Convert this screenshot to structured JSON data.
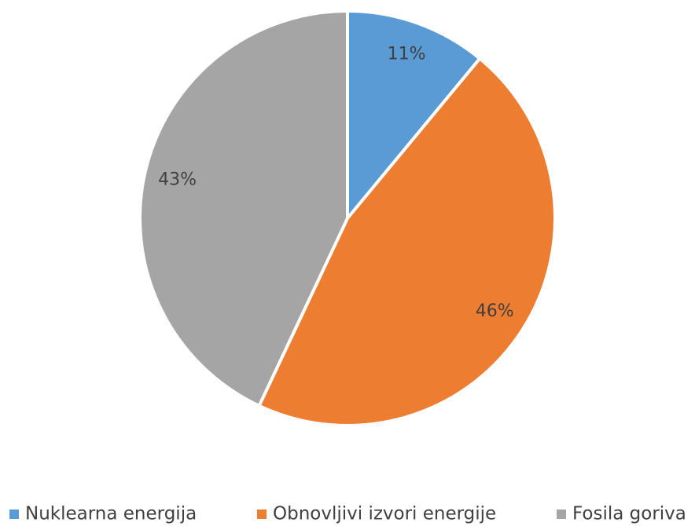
{
  "chart_data": {
    "type": "pie",
    "categories": [
      "Nuklearna energija",
      "Obnovljivi izvori energije",
      "Fosila goriva"
    ],
    "values": [
      11,
      46,
      43
    ],
    "value_labels": [
      "11%",
      "46%",
      "43%"
    ],
    "colors": [
      "#5b9bd5",
      "#ed7d31",
      "#a5a5a5"
    ],
    "legend": "bottom"
  }
}
